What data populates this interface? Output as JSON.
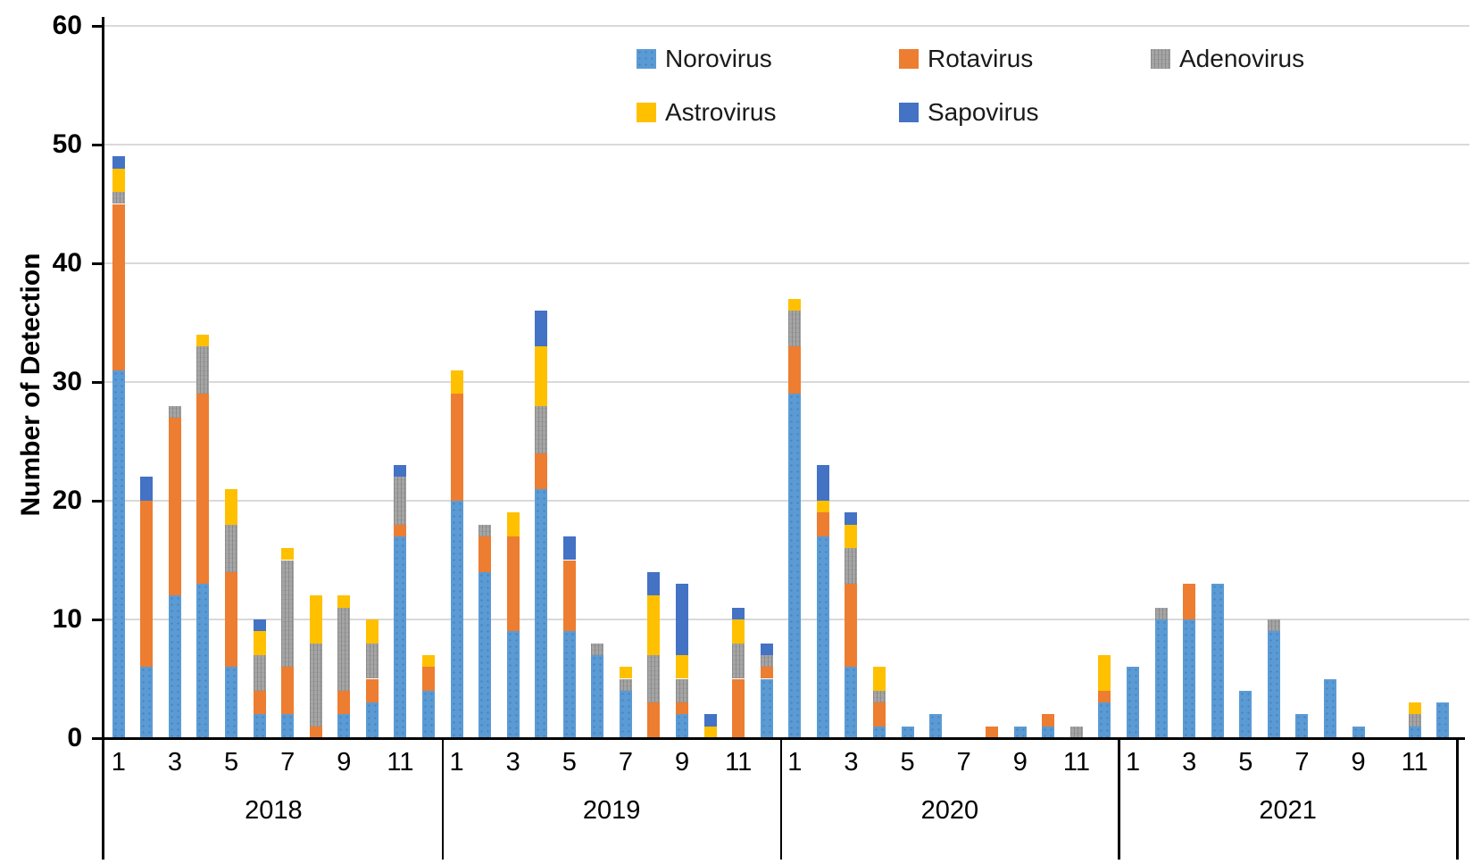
{
  "chart_data": {
    "type": "bar",
    "stacked": true,
    "title": "",
    "ylabel": "Number of Detection",
    "xlabel": "",
    "ylim": [
      0,
      60
    ],
    "yticks": [
      0,
      10,
      20,
      30,
      40,
      50,
      60
    ],
    "grid": true,
    "grid_color": "#d9d9d9",
    "axis_color": "#000000",
    "legend_position": "top",
    "years": [
      "2018",
      "2019",
      "2020",
      "2021"
    ],
    "months_per_year": 12,
    "month_tick_labels": [
      "1",
      "3",
      "5",
      "7",
      "9",
      "11"
    ],
    "month_tick_positions": [
      1,
      3,
      5,
      7,
      9,
      11
    ],
    "series": [
      {
        "name": "Norovirus",
        "color": "#5B9BD5",
        "values": [
          31,
          6,
          12,
          13,
          6,
          2,
          2,
          0,
          2,
          3,
          17,
          4,
          20,
          14,
          9,
          21,
          9,
          7,
          4,
          0,
          2,
          0,
          0,
          5,
          29,
          17,
          6,
          1,
          1,
          2,
          0,
          0,
          1,
          1,
          0,
          3,
          6,
          10,
          10,
          13,
          4,
          9,
          2,
          5,
          1,
          0,
          1,
          3
        ]
      },
      {
        "name": "Rotavirus",
        "color": "#ED7D31",
        "values": [
          14,
          14,
          15,
          16,
          8,
          2,
          4,
          1,
          2,
          2,
          1,
          2,
          9,
          3,
          8,
          3,
          6,
          0,
          0,
          3,
          1,
          0,
          5,
          1,
          4,
          2,
          7,
          2,
          0,
          0,
          0,
          1,
          0,
          1,
          0,
          1,
          0,
          0,
          3,
          0,
          0,
          0,
          0,
          0,
          0,
          0,
          0,
          0
        ]
      },
      {
        "name": "Adenovirus",
        "color": "#A5A5A5",
        "values": [
          1,
          0,
          1,
          4,
          4,
          3,
          9,
          7,
          7,
          3,
          4,
          0,
          0,
          1,
          0,
          4,
          0,
          1,
          1,
          4,
          2,
          0,
          3,
          1,
          3,
          0,
          3,
          1,
          0,
          0,
          0,
          0,
          0,
          0,
          1,
          0,
          0,
          1,
          0,
          0,
          0,
          1,
          0,
          0,
          0,
          0,
          1,
          0
        ]
      },
      {
        "name": "Astrovirus",
        "color": "#FFC000",
        "values": [
          2,
          0,
          0,
          1,
          3,
          2,
          1,
          4,
          1,
          2,
          0,
          1,
          2,
          0,
          2,
          5,
          0,
          0,
          1,
          5,
          2,
          1,
          2,
          0,
          1,
          1,
          2,
          2,
          0,
          0,
          0,
          0,
          0,
          0,
          0,
          3,
          0,
          0,
          0,
          0,
          0,
          0,
          0,
          0,
          0,
          0,
          1,
          0
        ]
      },
      {
        "name": "Sapovirus",
        "color": "#4472C4",
        "values": [
          1,
          2,
          0,
          0,
          0,
          1,
          0,
          0,
          0,
          0,
          1,
          0,
          0,
          0,
          0,
          3,
          2,
          0,
          0,
          2,
          6,
          1,
          1,
          1,
          0,
          3,
          1,
          0,
          0,
          0,
          0,
          0,
          0,
          0,
          0,
          0,
          0,
          0,
          0,
          0,
          0,
          0,
          0,
          0,
          0,
          0,
          0,
          0
        ]
      }
    ]
  }
}
